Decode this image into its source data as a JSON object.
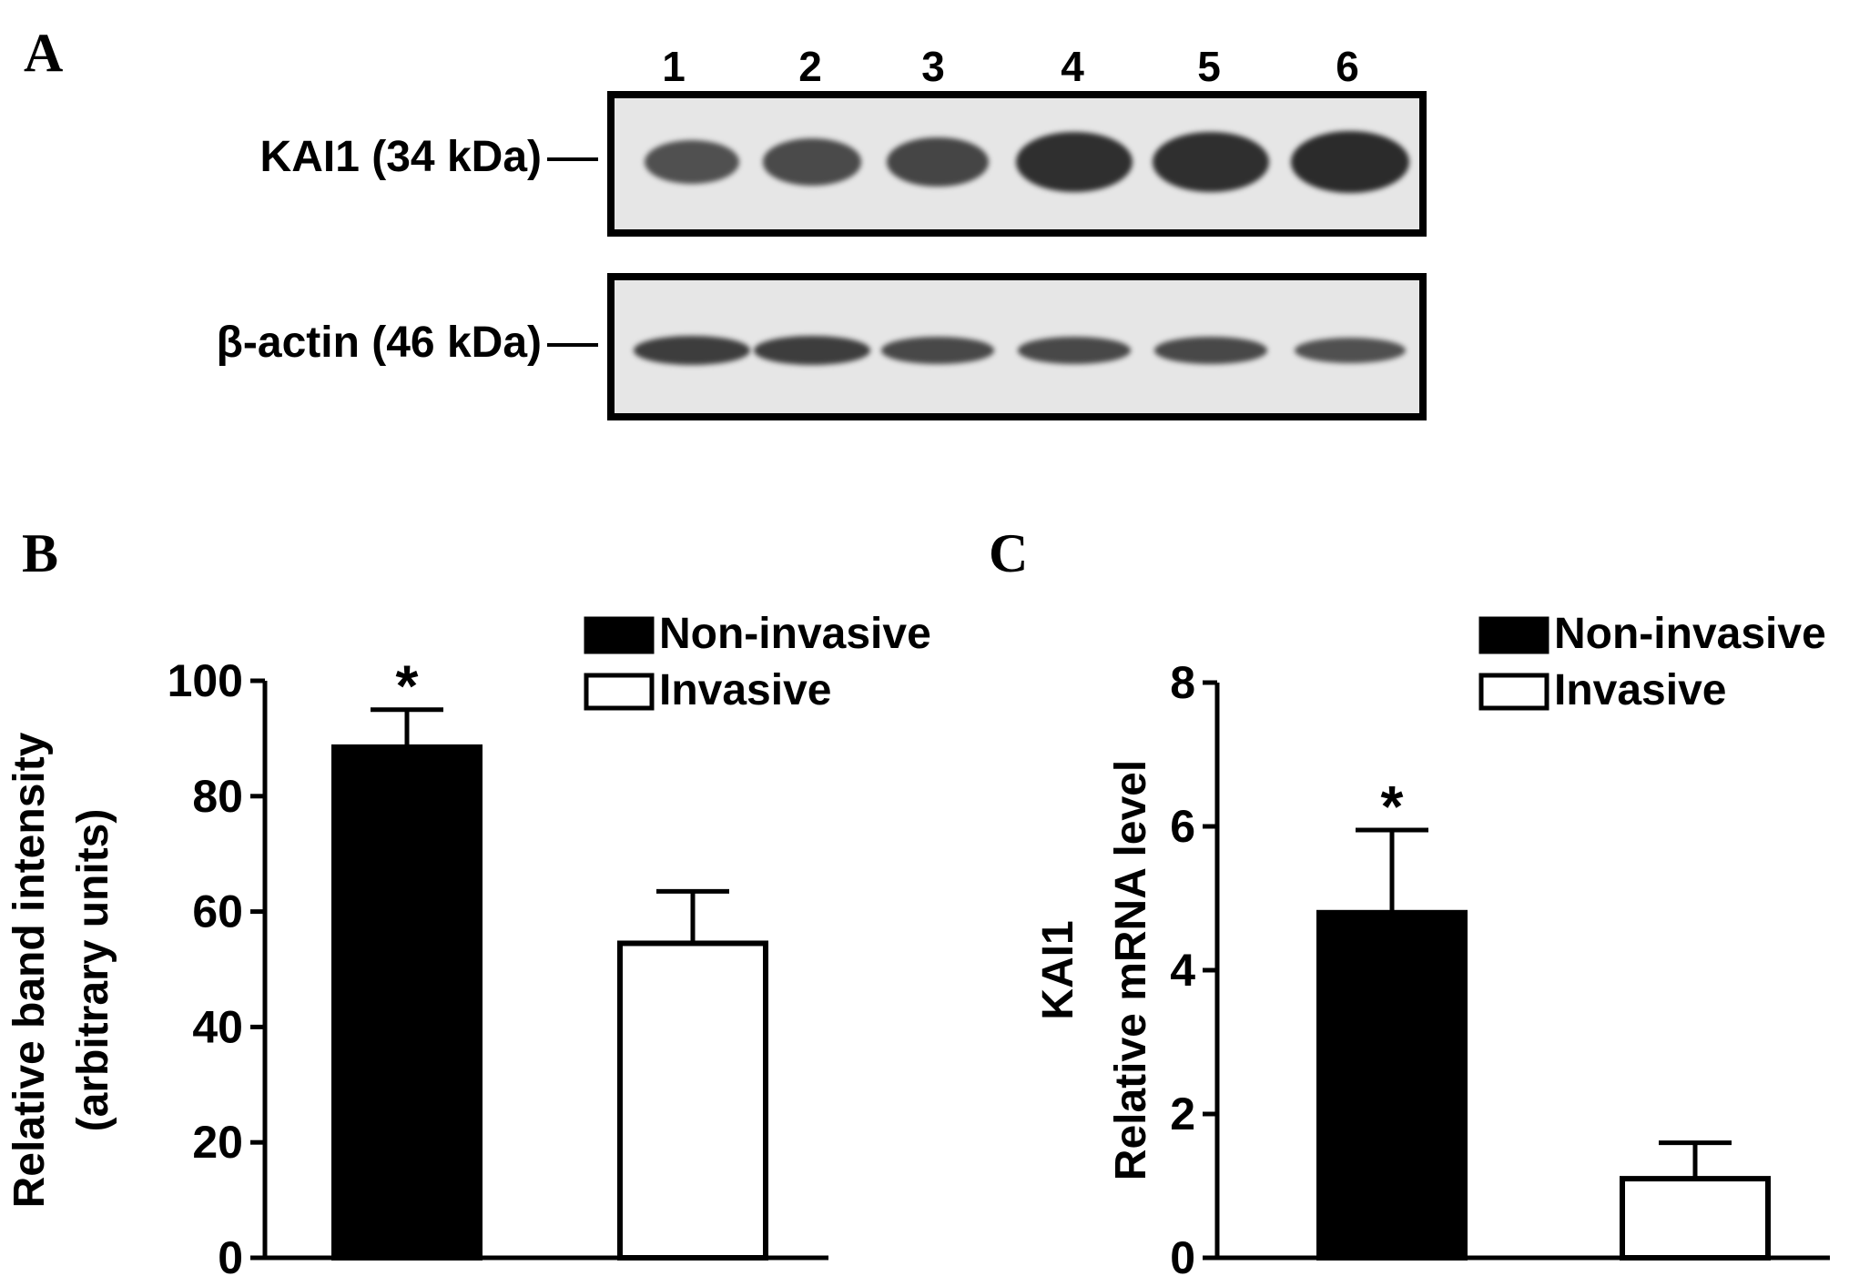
{
  "panels": {
    "a": "A",
    "b": "B",
    "c": "C"
  },
  "blot": {
    "lanes": [
      "1",
      "2",
      "3",
      "4",
      "5",
      "6"
    ],
    "kai1_label": "KAI1 (34 kDa)",
    "actin_label": "β-actin (46 kDa)",
    "kai1_band_intensity": [
      0.55,
      0.6,
      0.65,
      0.85,
      0.85,
      0.88
    ],
    "actin_band_intensity": [
      0.72,
      0.72,
      0.62,
      0.62,
      0.62,
      0.55
    ]
  },
  "chart_data": [
    {
      "type": "bar",
      "title": "",
      "ylabel": "Relative band intensity (arbitrary units)",
      "ylabel_lines": [
        "Relative band intensity",
        "(arbitrary units)"
      ],
      "ylim": [
        0,
        100
      ],
      "yticks": [
        0,
        20,
        40,
        60,
        80,
        100
      ],
      "categories": [
        "Non-invasive",
        "Invasive"
      ],
      "values": [
        88.5,
        54.5
      ],
      "errors": [
        6.5,
        9
      ],
      "fill_colors": [
        "#000000",
        "#ffffff"
      ],
      "annotations": [
        "*",
        ""
      ],
      "legend": [
        "Non-invasive",
        "Invasive"
      ],
      "legend_position": "top-right"
    },
    {
      "type": "bar",
      "title": "",
      "ylabel": "KAI1 Relative mRNA level",
      "ylabel_lines": [
        "KAI1",
        "Relative  mRNA level"
      ],
      "ylim": [
        0,
        8
      ],
      "yticks": [
        0,
        2,
        4,
        6,
        8
      ],
      "categories": [
        "Non-invasive",
        "Invasive"
      ],
      "values": [
        4.8,
        1.1
      ],
      "errors": [
        1.15,
        0.5
      ],
      "fill_colors": [
        "#000000",
        "#ffffff"
      ],
      "annotations": [
        "*",
        ""
      ],
      "legend": [
        "Non-invasive",
        "Invasive"
      ],
      "legend_position": "top-right"
    }
  ]
}
